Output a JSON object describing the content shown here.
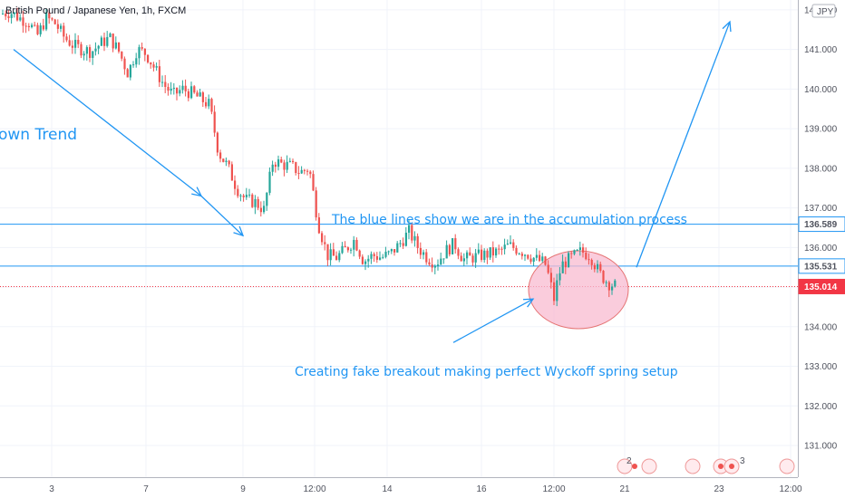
{
  "header": {
    "symbol_title": "British Pound / Japanese Yen, 1h, FXCM"
  },
  "currency_badge": "JPY",
  "annotations": {
    "down_trend": "own Trend",
    "accumulation": "The blue lines show we are in the accumulation process",
    "spring": "Creating fake breakout making  perfect Wyckoff spring setup"
  },
  "event_markers": {
    "count_a": "2",
    "count_b": "3"
  },
  "colors": {
    "up": "#26a69a",
    "down": "#ef5350",
    "annotation_blue": "#2196f3",
    "price_red": "#f23645",
    "ellipse_fill": "#f8bbd0",
    "ellipse_stroke": "#e57373"
  },
  "chart_data": {
    "type": "candlestick",
    "ylim": [
      130.2,
      142.25
    ],
    "y_ticks": [
      "131.000",
      "132.000",
      "133.000",
      "134.000",
      "135.000",
      "136.000",
      "137.000",
      "138.000",
      "139.000",
      "140.000",
      "141.000",
      "142.000"
    ],
    "x_ticks": [
      "3",
      "7",
      "9",
      "12:00",
      "14",
      "16",
      "12:00",
      "21",
      "23",
      "12:00"
    ],
    "levels": [
      {
        "label": "136.589",
        "value": 136.589,
        "style": "resistance"
      },
      {
        "label": "135.531",
        "value": 135.531,
        "style": "support"
      },
      {
        "label": "135.014",
        "value": 135.014,
        "style": "current-price"
      }
    ],
    "price_path": [
      [
        0,
        141.9
      ],
      [
        10,
        141.95
      ],
      [
        20,
        141.8
      ],
      [
        30,
        141.7
      ],
      [
        40,
        141.35
      ],
      [
        50,
        141.8
      ],
      [
        60,
        141.65
      ],
      [
        70,
        141.3
      ],
      [
        80,
        141.1
      ],
      [
        90,
        141.0
      ],
      [
        100,
        140.95
      ],
      [
        110,
        141.15
      ],
      [
        120,
        141.3
      ],
      [
        130,
        140.95
      ],
      [
        140,
        140.4
      ],
      [
        150,
        141.0
      ],
      [
        160,
        140.9
      ],
      [
        170,
        140.5
      ],
      [
        180,
        140.1
      ],
      [
        190,
        139.85
      ],
      [
        200,
        140.0
      ],
      [
        210,
        139.9
      ],
      [
        220,
        139.75
      ],
      [
        230,
        139.6
      ],
      [
        240,
        138.4
      ],
      [
        250,
        138.05
      ],
      [
        260,
        137.5
      ],
      [
        270,
        137.2
      ],
      [
        280,
        137.15
      ],
      [
        290,
        136.95
      ],
      [
        300,
        138.2
      ],
      [
        310,
        138.1
      ],
      [
        320,
        138.05
      ],
      [
        330,
        137.9
      ],
      [
        340,
        138.0
      ],
      [
        350,
        136.6
      ],
      [
        360,
        135.8
      ],
      [
        370,
        135.75
      ],
      [
        380,
        135.95
      ],
      [
        390,
        136.2
      ],
      [
        400,
        135.65
      ],
      [
        410,
        135.8
      ],
      [
        420,
        135.75
      ],
      [
        430,
        135.85
      ],
      [
        440,
        136.1
      ],
      [
        450,
        136.4
      ],
      [
        460,
        136.0
      ],
      [
        470,
        135.75
      ],
      [
        480,
        135.6
      ],
      [
        490,
        135.9
      ],
      [
        500,
        136.1
      ],
      [
        510,
        135.7
      ],
      [
        520,
        135.75
      ],
      [
        530,
        135.8
      ],
      [
        540,
        135.85
      ],
      [
        550,
        135.9
      ],
      [
        560,
        136.05
      ],
      [
        570,
        135.95
      ],
      [
        580,
        135.85
      ],
      [
        590,
        135.7
      ],
      [
        600,
        135.6
      ],
      [
        605,
        135.2
      ],
      [
        610,
        134.7
      ],
      [
        615,
        135.3
      ],
      [
        620,
        135.6
      ],
      [
        630,
        135.75
      ],
      [
        640,
        135.9
      ],
      [
        650,
        135.8
      ],
      [
        660,
        135.35
      ],
      [
        670,
        135.1
      ],
      [
        680,
        135.01
      ]
    ],
    "arrows": [
      {
        "from": [
          15,
          141.0
        ],
        "to": [
          222,
          137.3
        ]
      },
      {
        "from": [
          222,
          137.3
        ],
        "to": [
          268,
          136.3
        ]
      },
      {
        "from": [
          500,
          133.6
        ],
        "to": [
          588,
          134.7
        ]
      },
      {
        "from": [
          702,
          135.5
        ],
        "to": [
          805,
          141.7
        ]
      }
    ]
  }
}
